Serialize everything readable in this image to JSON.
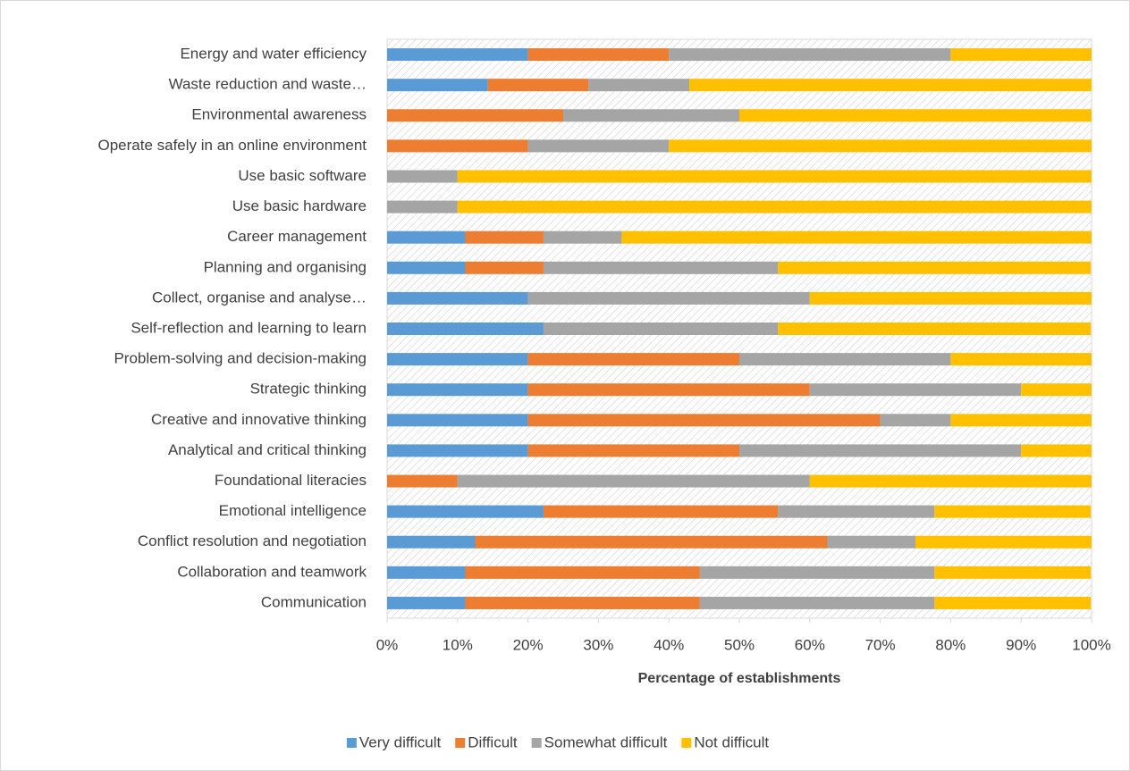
{
  "chart_data": {
    "type": "stacked_barh",
    "categories": [
      "Energy and water efficiency",
      "Waste reduction and waste…",
      "Environmental awareness",
      "Operate safely in an online environment",
      "Use basic software",
      "Use basic hardware",
      "Career management",
      "Planning and organising",
      "Collect, organise and analyse…",
      "Self-reflection and learning to learn",
      "Problem-solving and decision-making",
      "Strategic thinking",
      "Creative and innovative thinking",
      "Analytical and critical thinking",
      "Foundational literacies",
      "Emotional intelligence",
      "Conflict resolution and negotiation",
      "Collaboration and teamwork",
      "Communication"
    ],
    "series": [
      {
        "name": "Very difficult",
        "color": "#5b9bd5",
        "values": [
          20,
          14.3,
          0,
          0,
          0,
          0,
          11.1,
          11.1,
          20,
          22.2,
          20,
          20,
          20,
          20,
          0,
          22.2,
          12.5,
          11.1,
          11.1
        ]
      },
      {
        "name": "Difficult",
        "color": "#ed7d31",
        "values": [
          20,
          14.3,
          25,
          20,
          0,
          0,
          11.1,
          11.1,
          0,
          0,
          30,
          40,
          50,
          30,
          10,
          33.3,
          50,
          33.3,
          33.3
        ]
      },
      {
        "name": "Somewhat difficult",
        "color": "#a5a5a5",
        "values": [
          40,
          14.3,
          25,
          20,
          10,
          10,
          11.1,
          33.3,
          40,
          33.3,
          30,
          30,
          10,
          40,
          50,
          22.2,
          12.5,
          33.3,
          33.3
        ]
      },
      {
        "name": "Not difficult",
        "color": "#ffc000",
        "values": [
          20,
          57.1,
          50,
          60,
          90,
          90,
          66.7,
          44.4,
          40,
          44.4,
          20,
          10,
          20,
          10,
          40,
          22.2,
          25,
          22.2,
          22.2
        ]
      }
    ],
    "xlabel": "Percentage of establishments",
    "xlim": [
      0,
      100
    ],
    "xticks": [
      {
        "value": 0,
        "label": "0%"
      },
      {
        "value": 10,
        "label": "10%"
      },
      {
        "value": 20,
        "label": "20%"
      },
      {
        "value": 30,
        "label": "30%"
      },
      {
        "value": 40,
        "label": "40%"
      },
      {
        "value": 50,
        "label": "50%"
      },
      {
        "value": 60,
        "label": "60%"
      },
      {
        "value": 70,
        "label": "70%"
      },
      {
        "value": 80,
        "label": "80%"
      },
      {
        "value": 90,
        "label": "90%"
      },
      {
        "value": 100,
        "label": "100%"
      }
    ],
    "legend": "bottom"
  }
}
